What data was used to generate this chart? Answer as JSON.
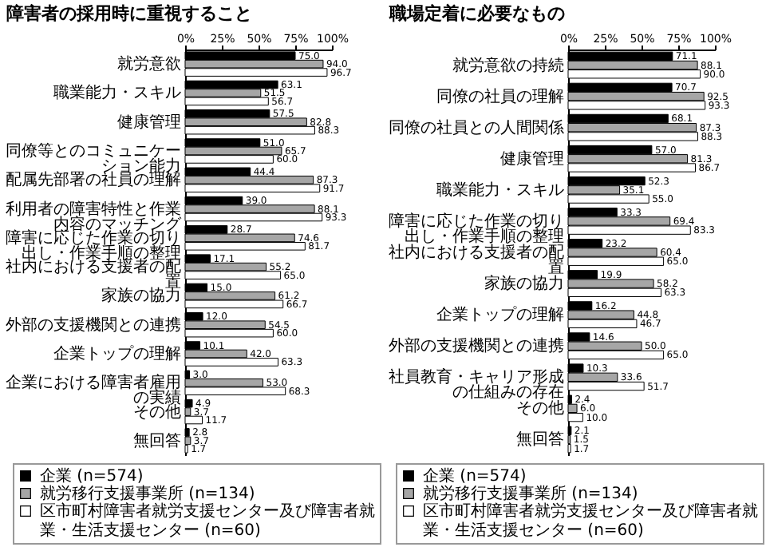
{
  "chart_data": [
    {
      "type": "bar",
      "orientation": "horizontal",
      "title": "障害者の採用時に重視すること",
      "categories": [
        "就労意欲",
        "職業能力・スキル",
        "健康管理",
        "同僚等とのコミュニケーション能力",
        "配属先部署の社員の理解",
        "利用者の障害特性と作業内容のマッチング",
        "障害に応じた作業の切り出し・作業手順の整理",
        "社内における支援者の配置",
        "家族の協力",
        "外部の支援機関との連携",
        "企業トップの理解",
        "企業における障害者雇用の実績",
        "その他",
        "無回答"
      ],
      "series": [
        {
          "name": "企業 (n=574)",
          "color": "#000000",
          "values": [
            75.0,
            63.1,
            57.5,
            51.0,
            44.4,
            39.0,
            28.7,
            17.1,
            15.0,
            12.0,
            10.1,
            3.0,
            4.9,
            2.8
          ],
          "value_labels": [
            "75.0",
            "63.1",
            "57.5",
            "51.0",
            "44.4",
            "39.0",
            "28.7",
            "17.1",
            "15.0",
            "12.0",
            "10.1",
            "3.0",
            "4.9",
            "2.8"
          ]
        },
        {
          "name": "就労移行支援事業所 (n=134)",
          "color": "#a6a6a6",
          "values": [
            94.0,
            51.5,
            82.8,
            65.7,
            87.3,
            88.1,
            74.6,
            55.2,
            61.2,
            54.5,
            42.0,
            53.0,
            3.7,
            3.7
          ],
          "value_labels": [
            "94.0",
            "51.5",
            "82.8",
            "65.7",
            "87.3",
            "88.1",
            "74.6",
            "55.2",
            "61.2",
            "54.5",
            "42.0",
            "53.0",
            "3.7",
            "3.7"
          ]
        },
        {
          "name": "区市町村障害者就労支援センター及び障害者就業・生活支援センター (n=60)",
          "color": "#ffffff",
          "values": [
            96.7,
            56.7,
            88.3,
            60.0,
            91.7,
            93.3,
            81.7,
            65.0,
            66.7,
            60.0,
            63.3,
            68.3,
            11.7,
            1.7
          ],
          "value_labels": [
            "96.7",
            "56.7",
            "88.3",
            "60.0",
            "91.7",
            "93.3",
            "81.7",
            "65.0",
            "66.7",
            "60.0",
            "63.3",
            "68.3",
            "11.7",
            "1.7"
          ]
        }
      ],
      "xlim": [
        0,
        100
      ],
      "xticks": [
        {
          "value": 0,
          "label": "0%"
        },
        {
          "value": 25,
          "label": "25%"
        },
        {
          "value": 50,
          "label": "50%"
        },
        {
          "value": 75,
          "label": "75%"
        },
        {
          "value": 100,
          "label": "100%"
        }
      ],
      "data_labels": true,
      "legend": "bottom"
    },
    {
      "type": "bar",
      "orientation": "horizontal",
      "title": "職場定着に必要なもの",
      "categories": [
        "就労意欲の持続",
        "同僚の社員の理解",
        "同僚の社員との人間関係",
        "健康管理",
        "職業能力・スキル",
        "障害に応じた作業の切り出し・作業手順の整理",
        "社内における支援者の配置",
        "家族の協力",
        "企業トップの理解",
        "外部の支援機関との連携",
        "社員教育・キャリア形成の仕組みの存在",
        "その他",
        "無回答"
      ],
      "series": [
        {
          "name": "企業 (n=574)",
          "color": "#000000",
          "values": [
            71.1,
            70.7,
            68.1,
            57.0,
            52.3,
            33.3,
            23.2,
            19.9,
            16.2,
            14.6,
            10.3,
            2.4,
            2.1
          ],
          "value_labels": [
            "71.1",
            "70.7",
            "68.1",
            "57.0",
            "52.3",
            "33.3",
            "23.2",
            "19.9",
            "16.2",
            "14.6",
            "10.3",
            "2.4",
            "2.1"
          ]
        },
        {
          "name": "就労移行支援事業所 (n=134)",
          "color": "#a6a6a6",
          "values": [
            88.1,
            92.5,
            87.3,
            81.3,
            35.1,
            69.4,
            60.4,
            58.2,
            44.8,
            50.0,
            33.6,
            6.0,
            1.5
          ],
          "value_labels": [
            "88.1",
            "92.5",
            "87.3",
            "81.3",
            "35.1",
            "69.4",
            "60.4",
            "58.2",
            "44.8",
            "50.0",
            "33.6",
            "6.0",
            "1.5"
          ]
        },
        {
          "name": "区市町村障害者就労支援センター及び障害者就業・生活支援センター (n=60)",
          "color": "#ffffff",
          "values": [
            90.0,
            93.3,
            88.3,
            86.7,
            55.0,
            83.3,
            65.0,
            63.3,
            46.7,
            65.0,
            51.7,
            10.0,
            1.7
          ],
          "value_labels": [
            "90.0",
            "93.3",
            "88.3",
            "86.7",
            "55.0",
            "83.3",
            "65.0",
            "63.3",
            "46.7",
            "65.0",
            "51.7",
            "10.0",
            "1.7"
          ]
        }
      ],
      "xlim": [
        0,
        100
      ],
      "xticks": [
        {
          "value": 0,
          "label": "0%"
        },
        {
          "value": 25,
          "label": "25%"
        },
        {
          "value": 50,
          "label": "50%"
        },
        {
          "value": 75,
          "label": "75%"
        },
        {
          "value": 100,
          "label": "100%"
        }
      ],
      "data_labels": true,
      "legend": "bottom"
    }
  ]
}
